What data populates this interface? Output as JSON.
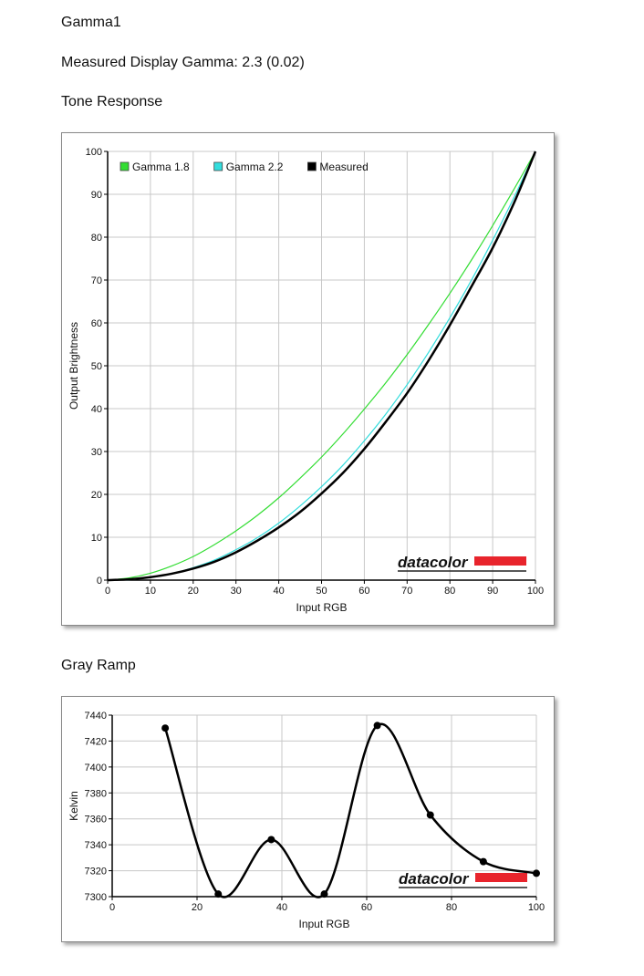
{
  "page": {
    "title": "Gamma1",
    "measured_gamma_line": "Measured Display Gamma: 2.3 (0.02)",
    "tone_heading": "Tone Response",
    "gray_heading": "Gray Ramp",
    "watermark": "datacolor",
    "colors": {
      "gamma18": "#33dd33",
      "gamma22": "#33dddd",
      "measured": "#000000",
      "brand_red": "#e8242c",
      "grid": "#c8c8c8"
    }
  },
  "chart_data": [
    {
      "type": "line",
      "title": "",
      "xlabel": "Input RGB",
      "ylabel": "Output Brightness",
      "xlim": [
        0,
        100
      ],
      "ylim": [
        0,
        100
      ],
      "xticks": [
        0,
        10,
        20,
        30,
        40,
        50,
        60,
        70,
        80,
        90,
        100
      ],
      "yticks": [
        0,
        10,
        20,
        30,
        40,
        50,
        60,
        70,
        80,
        90,
        100
      ],
      "grid": true,
      "legend_position": "top-left",
      "series": [
        {
          "name": "Gamma 1.8",
          "color": "#33dd33",
          "x": [
            0,
            5,
            10,
            15,
            20,
            25,
            30,
            35,
            40,
            45,
            50,
            55,
            60,
            65,
            70,
            75,
            80,
            85,
            90,
            95,
            100
          ],
          "y": [
            0,
            0.5,
            1.6,
            3.3,
            5.5,
            8.3,
            11.5,
            15.1,
            19.2,
            23.8,
            28.7,
            34.1,
            39.9,
            46.0,
            52.6,
            59.6,
            66.9,
            74.6,
            82.7,
            91.2,
            100
          ]
        },
        {
          "name": "Gamma 2.2",
          "color": "#33dddd",
          "x": [
            0,
            5,
            10,
            15,
            20,
            25,
            30,
            35,
            40,
            45,
            50,
            55,
            60,
            65,
            70,
            75,
            80,
            85,
            90,
            95,
            100
          ],
          "y": [
            0,
            0.1,
            0.6,
            1.5,
            2.9,
            4.7,
            7.1,
            9.9,
            13.3,
            17.3,
            21.8,
            26.8,
            32.5,
            38.7,
            45.6,
            53.1,
            61.2,
            69.9,
            79.3,
            89.3,
            100
          ]
        },
        {
          "name": "Measured",
          "color": "#000000",
          "x": [
            0,
            5,
            10,
            15,
            20,
            25,
            30,
            35,
            40,
            45,
            50,
            55,
            60,
            65,
            70,
            75,
            80,
            85,
            90,
            95,
            100
          ],
          "y": [
            0,
            0.2,
            0.7,
            1.5,
            2.7,
            4.3,
            6.5,
            9.2,
            12.3,
            15.9,
            20.2,
            25.0,
            30.6,
            36.9,
            43.6,
            51.2,
            59.5,
            68.4,
            77.5,
            88.0,
            100
          ]
        }
      ]
    },
    {
      "type": "line",
      "title": "",
      "xlabel": "Input RGB",
      "ylabel": "Kelvin",
      "xlim": [
        0,
        100
      ],
      "ylim": [
        7300,
        7440
      ],
      "xticks": [
        0,
        20,
        40,
        60,
        80,
        100
      ],
      "yticks": [
        7300,
        7320,
        7340,
        7360,
        7380,
        7400,
        7420,
        7440
      ],
      "grid": true,
      "series": [
        {
          "name": "",
          "color": "#000000",
          "x": [
            12.5,
            25,
            37.5,
            50,
            62.5,
            75,
            87.5,
            100
          ],
          "y": [
            7430,
            7302,
            7344,
            7302,
            7432,
            7363,
            7327,
            7318
          ]
        }
      ]
    }
  ]
}
